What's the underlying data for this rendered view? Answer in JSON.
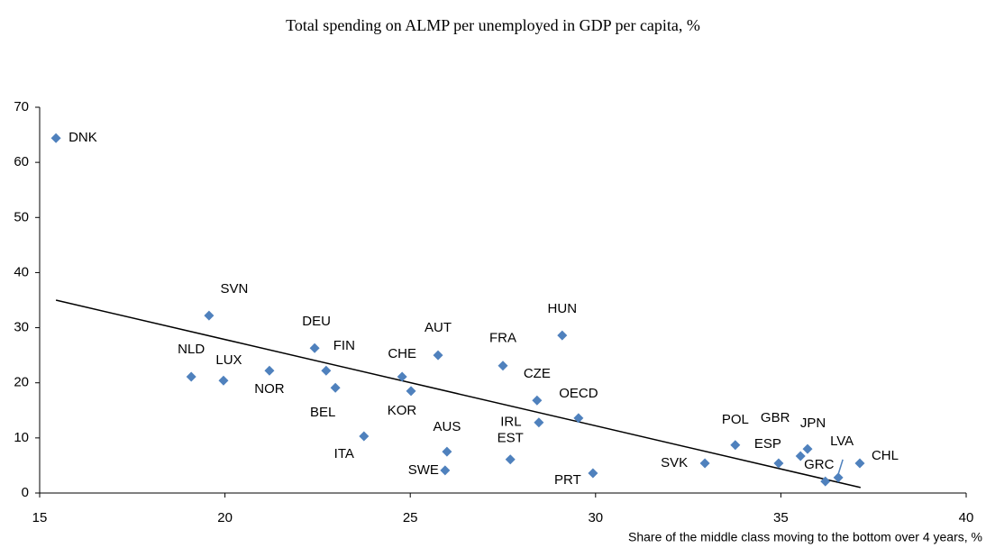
{
  "chart_data": {
    "type": "scatter",
    "title": "Total spending on ALMP per unemployed in GDP per capita, %",
    "x_label": "Share of the middle class moving to the bottom over 4 years, %",
    "categories": [
      "DNK",
      "SVN",
      "NLD",
      "LUX",
      "NOR",
      "DEU",
      "FIN",
      "BEL",
      "ITA",
      "CHE",
      "KOR",
      "AUT",
      "AUS",
      "SWE",
      "FRA",
      "EST",
      "CZE",
      "IRL",
      "HUN",
      "OECD",
      "PRT",
      "SVK",
      "POL",
      "ESP",
      "GBR",
      "JPN",
      "GRC",
      "LVA",
      "CHL"
    ],
    "x": [
      15.44,
      19.57,
      19.09,
      19.96,
      21.2,
      22.42,
      22.73,
      22.98,
      23.75,
      24.78,
      25.02,
      25.75,
      25.99,
      25.94,
      27.5,
      27.7,
      28.42,
      28.47,
      29.1,
      29.54,
      29.93,
      32.95,
      33.77,
      34.94,
      35.53,
      35.72,
      36.2,
      36.55,
      37.13
    ],
    "y": [
      64.4,
      32.2,
      21.1,
      20.4,
      22.2,
      26.3,
      22.2,
      19.1,
      10.3,
      21.1,
      18.5,
      25.0,
      7.5,
      4.1,
      23.1,
      6.1,
      16.8,
      12.8,
      28.6,
      13.6,
      3.6,
      5.4,
      8.7,
      5.4,
      6.7,
      8.0,
      2.1,
      2.8,
      5.4
    ],
    "color": "#4f81bd",
    "trendline": {
      "x": [
        15.44,
        37.15
      ],
      "y": [
        35.0,
        1.0
      ],
      "color": "#000000"
    },
    "xlim": [
      15,
      40
    ],
    "xticks": [
      15,
      20,
      25,
      30,
      35,
      40
    ],
    "ylim": [
      0,
      70
    ],
    "yticks": [
      0,
      10,
      20,
      30,
      40,
      50,
      60,
      70
    ]
  }
}
